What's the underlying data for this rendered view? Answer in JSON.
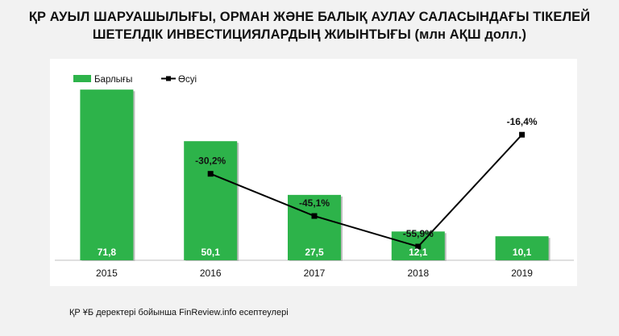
{
  "title_line1": "ҚР АУЫЛ ШАРУАШЫЛЫҒЫ, ОРМАН ЖӘНЕ БАЛЫҚ АУЛАУ САЛАСЫНДАҒЫ ТІКЕЛЕЙ",
  "title_line2": "ШЕТЕЛДІК ИНВЕСТИЦИЯЛАРДЫҢ ЖИЫНТЫҒЫ (млн АҚШ долл.)",
  "source": "ҚР ҰБ деректері бойынша FinReview.info есептеулері",
  "colors": {
    "bar": "#2db34a",
    "line": "#000000",
    "background": "#f2f2f2"
  },
  "chart_data": {
    "type": "bar",
    "categories": [
      "2015",
      "2016",
      "2017",
      "2018",
      "2019"
    ],
    "series": [
      {
        "name": "Барлығы",
        "type": "bar",
        "values": [
          71.8,
          50.1,
          27.5,
          12.1,
          10.1
        ],
        "labels": [
          "71,8",
          "50,1",
          "27,5",
          "12,1",
          "10,1"
        ]
      },
      {
        "name": "Өсуі",
        "type": "line",
        "values": [
          null,
          -30.2,
          -45.1,
          -55.9,
          -16.4
        ],
        "labels": [
          "",
          "-30,2%",
          "-45,1%",
          "-55,9%",
          "-16,4%"
        ]
      }
    ],
    "ylim": [
      0,
      80
    ],
    "growth_ylim": [
      -65,
      5
    ],
    "legend_position": "top-left",
    "grid": false
  }
}
